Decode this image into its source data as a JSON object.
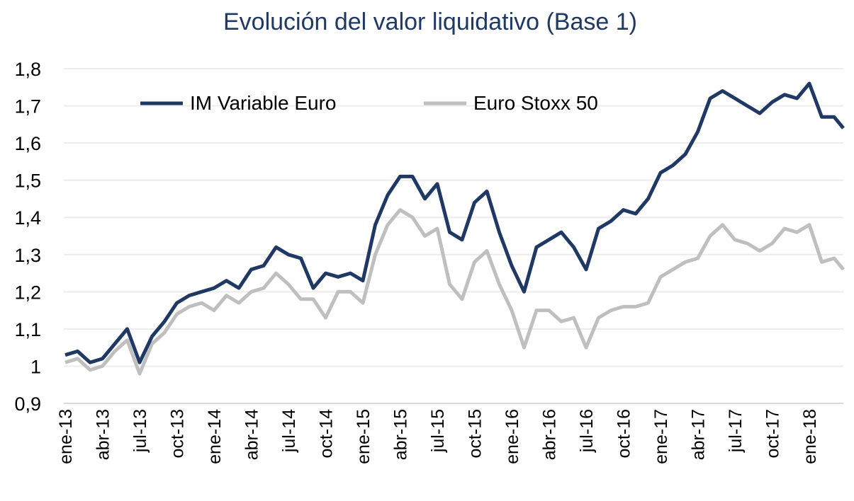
{
  "chart_data": {
    "type": "line",
    "title": "Evolución del valor liquidativo (Base 1)",
    "xlabel": "",
    "ylabel": "",
    "ylim": [
      0.9,
      1.8
    ],
    "yticks": [
      "0,9",
      "1",
      "1,1",
      "1,2",
      "1,3",
      "1,4",
      "1,5",
      "1,6",
      "1,7",
      "1,8"
    ],
    "ytick_values": [
      0.9,
      1.0,
      1.1,
      1.2,
      1.3,
      1.4,
      1.5,
      1.6,
      1.7,
      1.8
    ],
    "xticks": [
      "ene-13",
      "abr-13",
      "jul-13",
      "oct-13",
      "ene-14",
      "abr-14",
      "jul-14",
      "oct-14",
      "ene-15",
      "abr-15",
      "jul-15",
      "oct-15",
      "ene-16",
      "abr-16",
      "jul-16",
      "oct-16",
      "ene-17",
      "abr-17",
      "jul-17",
      "oct-17",
      "ene-18"
    ],
    "x_unit": "months since ene-13",
    "grid": true,
    "legend_position": "top-left",
    "series": [
      {
        "name": "IM Variable Euro",
        "color": "#1f3864",
        "values": [
          1.03,
          1.04,
          1.01,
          1.02,
          1.06,
          1.1,
          1.01,
          1.08,
          1.12,
          1.17,
          1.19,
          1.2,
          1.21,
          1.23,
          1.21,
          1.26,
          1.27,
          1.32,
          1.3,
          1.29,
          1.21,
          1.25,
          1.24,
          1.25,
          1.23,
          1.38,
          1.46,
          1.51,
          1.51,
          1.45,
          1.49,
          1.36,
          1.34,
          1.44,
          1.47,
          1.36,
          1.27,
          1.2,
          1.32,
          1.34,
          1.36,
          1.32,
          1.26,
          1.37,
          1.39,
          1.42,
          1.41,
          1.45,
          1.52,
          1.54,
          1.57,
          1.63,
          1.72,
          1.74,
          1.72,
          1.7,
          1.68,
          1.71,
          1.73,
          1.72,
          1.76,
          1.67,
          1.67,
          1.64
        ]
      },
      {
        "name": "Euro Stoxx 50",
        "color": "#bfbfbf",
        "values": [
          1.01,
          1.02,
          0.99,
          1.0,
          1.04,
          1.07,
          0.98,
          1.06,
          1.09,
          1.14,
          1.16,
          1.17,
          1.15,
          1.19,
          1.17,
          1.2,
          1.21,
          1.25,
          1.22,
          1.18,
          1.18,
          1.13,
          1.2,
          1.2,
          1.17,
          1.3,
          1.38,
          1.42,
          1.4,
          1.35,
          1.37,
          1.22,
          1.18,
          1.28,
          1.31,
          1.22,
          1.15,
          1.05,
          1.15,
          1.15,
          1.12,
          1.13,
          1.05,
          1.13,
          1.15,
          1.16,
          1.16,
          1.17,
          1.24,
          1.26,
          1.28,
          1.29,
          1.35,
          1.38,
          1.34,
          1.33,
          1.31,
          1.33,
          1.37,
          1.36,
          1.38,
          1.28,
          1.29,
          1.26
        ]
      }
    ]
  }
}
